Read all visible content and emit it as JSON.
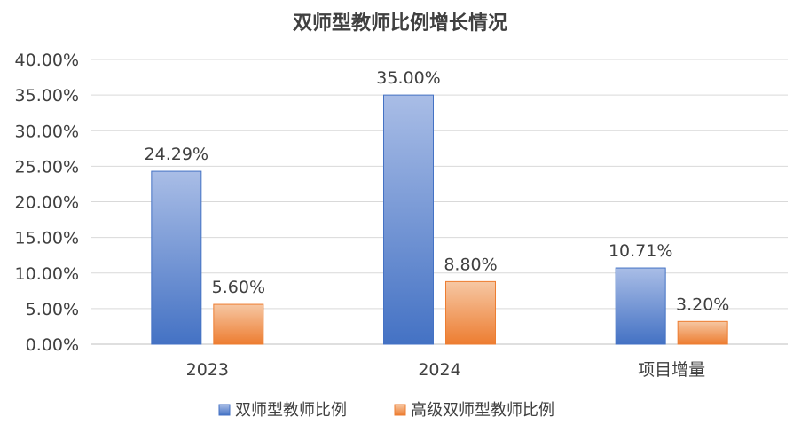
{
  "chart_data": {
    "type": "bar",
    "title": "双师型教师比例增长情况",
    "categories": [
      "2023",
      "2024",
      "项目增量"
    ],
    "series": [
      {
        "name": "双师型教师比例",
        "values": [
          24.29,
          35.0,
          10.71
        ],
        "labels": [
          "24.29%",
          "35.00%",
          "10.71%"
        ],
        "color_top": "#a9bde6",
        "color_bottom": "#4472c4",
        "stroke": "#4472c4"
      },
      {
        "name": "高级双师型教师比例",
        "values": [
          5.6,
          8.8,
          3.2
        ],
        "labels": [
          "5.60%",
          "8.80%",
          "3.20%"
        ],
        "color_top": "#f6c7a3",
        "color_bottom": "#ed7d31",
        "stroke": "#ed7d31"
      }
    ],
    "ylim": [
      0,
      40
    ],
    "yticks": [
      0,
      5,
      10,
      15,
      20,
      25,
      30,
      35,
      40
    ],
    "ytick_labels": [
      "0.00%",
      "5.00%",
      "10.00%",
      "15.00%",
      "20.00%",
      "25.00%",
      "30.00%",
      "35.00%",
      "40.00%"
    ],
    "xlabel": "",
    "ylabel": "",
    "grid": true,
    "legend": "bottom"
  }
}
